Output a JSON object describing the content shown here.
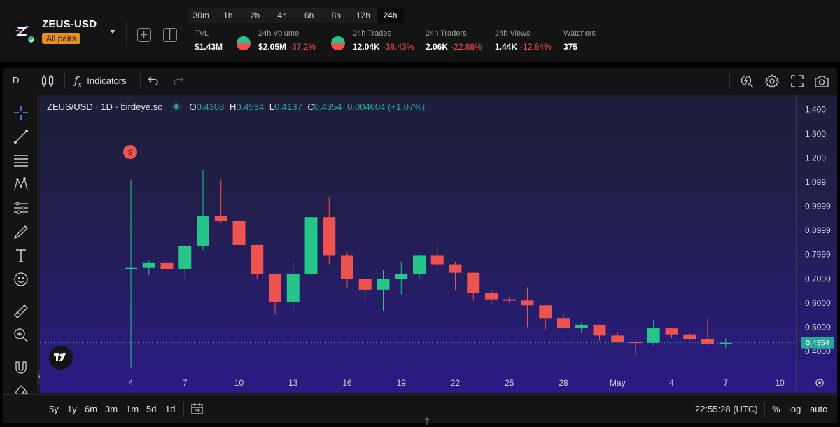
{
  "pair": {
    "name": "ZEUS-USD",
    "badge": "All pairs"
  },
  "timeframes": [
    "30m",
    "1h",
    "2h",
    "4h",
    "6h",
    "8h",
    "12h",
    "24h"
  ],
  "active_timeframe": "24h",
  "stats": {
    "tvl": {
      "label": "TVL",
      "value": "$1.43M"
    },
    "volume": {
      "label": "24h Volume",
      "value": "$2.05M",
      "change": "-37.2%"
    },
    "trades": {
      "label": "24h Trades",
      "value": "12.04K",
      "change": "-38.43%"
    },
    "traders": {
      "label": "24h Traders",
      "value": "2.06K",
      "change": "-22.88%"
    },
    "views": {
      "label": "24h Views",
      "value": "1.44K",
      "change": "-12.84%"
    },
    "watchers": {
      "label": "Watchers",
      "value": "375"
    }
  },
  "toolbar": {
    "interval": "D",
    "indicators": "Indicators"
  },
  "legend": {
    "symbol": "ZEUS/USD · 1D · birdeye.so",
    "o_label": "O",
    "o": "0.4308",
    "h_label": "H",
    "h": "0.4534",
    "l_label": "L",
    "l": "0.4137",
    "c_label": "C",
    "c": "0.4354",
    "change": "0.004604 (+1.07%)"
  },
  "signal_marker": "S",
  "price_axis": [
    "1.400",
    "1.300",
    "1.200",
    "1.099",
    "0.9999",
    "0.8999",
    "0.7999",
    "0.7000",
    "0.6000",
    "0.5000",
    "0.4000"
  ],
  "last_price": "0.4354",
  "time_axis": [
    "4",
    "7",
    "10",
    "13",
    "16",
    "19",
    "22",
    "25",
    "28",
    "May",
    "4",
    "7",
    "10"
  ],
  "bottom": {
    "ranges": [
      "5y",
      "1y",
      "6m",
      "3m",
      "1m",
      "5d",
      "1d"
    ],
    "clock": "22:55:28 (UTC)",
    "percent": "%",
    "log": "log",
    "auto": "auto"
  },
  "colors": {
    "up": "#26c58a",
    "down": "#ef5350",
    "accent": "#e98f1c"
  },
  "chart_data": {
    "type": "candlestick",
    "title": "ZEUS/USD · 1D · birdeye.so",
    "ylim": [
      0.36,
      1.44
    ],
    "candles": [
      {
        "day": 4,
        "o": 0.745,
        "h": 1.11,
        "l": 0.33,
        "c": 0.745
      },
      {
        "day": 5,
        "o": 0.745,
        "h": 0.775,
        "l": 0.715,
        "c": 0.765
      },
      {
        "day": 6,
        "o": 0.765,
        "h": 0.765,
        "l": 0.7,
        "c": 0.74
      },
      {
        "day": 7,
        "o": 0.74,
        "h": 0.84,
        "l": 0.7,
        "c": 0.835
      },
      {
        "day": 8,
        "o": 0.835,
        "h": 1.15,
        "l": 0.82,
        "c": 0.96
      },
      {
        "day": 9,
        "o": 0.96,
        "h": 1.11,
        "l": 0.93,
        "c": 0.94
      },
      {
        "day": 10,
        "o": 0.94,
        "h": 0.94,
        "l": 0.77,
        "c": 0.84
      },
      {
        "day": 11,
        "o": 0.84,
        "h": 0.84,
        "l": 0.7,
        "c": 0.72
      },
      {
        "day": 12,
        "o": 0.72,
        "h": 0.72,
        "l": 0.555,
        "c": 0.605
      },
      {
        "day": 13,
        "o": 0.605,
        "h": 0.77,
        "l": 0.575,
        "c": 0.72
      },
      {
        "day": 14,
        "o": 0.72,
        "h": 0.975,
        "l": 0.66,
        "c": 0.955
      },
      {
        "day": 15,
        "o": 0.955,
        "h": 1.04,
        "l": 0.76,
        "c": 0.795
      },
      {
        "day": 16,
        "o": 0.795,
        "h": 0.81,
        "l": 0.66,
        "c": 0.7
      },
      {
        "day": 17,
        "o": 0.7,
        "h": 0.7,
        "l": 0.61,
        "c": 0.655
      },
      {
        "day": 18,
        "o": 0.655,
        "h": 0.735,
        "l": 0.565,
        "c": 0.7
      },
      {
        "day": 19,
        "o": 0.7,
        "h": 0.77,
        "l": 0.635,
        "c": 0.72
      },
      {
        "day": 20,
        "o": 0.72,
        "h": 0.8,
        "l": 0.7,
        "c": 0.795
      },
      {
        "day": 21,
        "o": 0.795,
        "h": 0.845,
        "l": 0.74,
        "c": 0.76
      },
      {
        "day": 22,
        "o": 0.76,
        "h": 0.77,
        "l": 0.655,
        "c": 0.725
      },
      {
        "day": 23,
        "o": 0.725,
        "h": 0.725,
        "l": 0.61,
        "c": 0.64
      },
      {
        "day": 24,
        "o": 0.64,
        "h": 0.655,
        "l": 0.595,
        "c": 0.615
      },
      {
        "day": 25,
        "o": 0.615,
        "h": 0.625,
        "l": 0.6,
        "c": 0.61
      },
      {
        "day": 26,
        "o": 0.61,
        "h": 0.665,
        "l": 0.5,
        "c": 0.59
      },
      {
        "day": 27,
        "o": 0.59,
        "h": 0.59,
        "l": 0.49,
        "c": 0.535
      },
      {
        "day": 28,
        "o": 0.535,
        "h": 0.555,
        "l": 0.495,
        "c": 0.495
      },
      {
        "day": 29,
        "o": 0.495,
        "h": 0.52,
        "l": 0.475,
        "c": 0.51
      },
      {
        "day": 30,
        "o": 0.51,
        "h": 0.51,
        "l": 0.445,
        "c": 0.465
      },
      {
        "day": 31,
        "o": 0.465,
        "h": 0.48,
        "l": 0.435,
        "c": 0.44
      },
      {
        "day": 32,
        "o": 0.44,
        "h": 0.445,
        "l": 0.385,
        "c": 0.435
      },
      {
        "day": 33,
        "o": 0.435,
        "h": 0.53,
        "l": 0.425,
        "c": 0.495
      },
      {
        "day": 34,
        "o": 0.495,
        "h": 0.495,
        "l": 0.455,
        "c": 0.47
      },
      {
        "day": 35,
        "o": 0.47,
        "h": 0.475,
        "l": 0.445,
        "c": 0.45
      },
      {
        "day": 36,
        "o": 0.45,
        "h": 0.535,
        "l": 0.42,
        "c": 0.43
      },
      {
        "day": 37,
        "o": 0.4308,
        "h": 0.4534,
        "l": 0.4137,
        "c": 0.4354
      }
    ]
  }
}
